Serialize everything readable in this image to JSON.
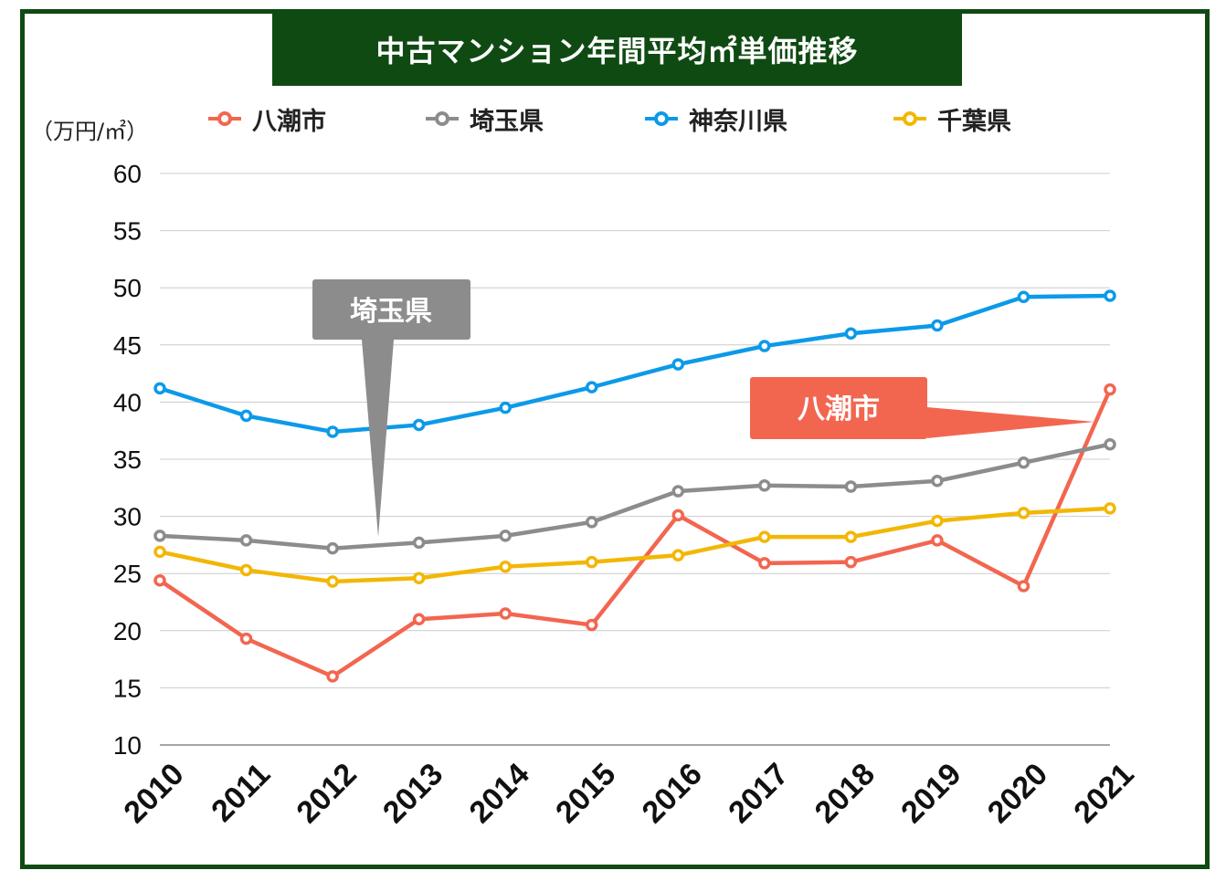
{
  "chart_data": {
    "type": "line",
    "title": "中古マンション年間平均㎡単価推移",
    "ylabel": "（万円/㎡）",
    "xlabel": "",
    "ylim": [
      10,
      60
    ],
    "yticks": [
      10,
      15,
      20,
      25,
      30,
      35,
      40,
      45,
      50,
      55,
      60
    ],
    "categories": [
      "2010",
      "2011",
      "2012",
      "2013",
      "2014",
      "2015",
      "2016",
      "2017",
      "2018",
      "2019",
      "2020",
      "2021"
    ],
    "grid": true,
    "legend_position": "top",
    "series": [
      {
        "name": "八潮市",
        "color": "#f26650",
        "values": [
          24.4,
          19.3,
          16.0,
          21.0,
          21.5,
          20.5,
          30.1,
          25.9,
          26.0,
          27.9,
          23.9,
          41.1
        ]
      },
      {
        "name": "埼玉県",
        "color": "#8c8c8c",
        "values": [
          28.3,
          27.9,
          27.2,
          27.7,
          28.3,
          29.5,
          32.2,
          32.7,
          32.6,
          33.1,
          34.7,
          36.3
        ]
      },
      {
        "name": "神奈川県",
        "color": "#0c9ae8",
        "values": [
          41.2,
          38.8,
          37.4,
          38.0,
          39.5,
          41.3,
          43.3,
          44.9,
          46.0,
          46.7,
          49.2,
          49.3
        ]
      },
      {
        "name": "千葉県",
        "color": "#f2b705",
        "values": [
          26.9,
          25.3,
          24.3,
          24.6,
          25.6,
          26.0,
          26.6,
          28.2,
          28.2,
          29.6,
          30.3,
          30.7
        ]
      }
    ],
    "annotations": [
      {
        "text": "埼玉県",
        "color": "#8c8c8c"
      },
      {
        "text": "八潮市",
        "color": "#f26650"
      }
    ]
  },
  "colors": {
    "frame": "#0f4a12",
    "grid": "#cccccc"
  }
}
